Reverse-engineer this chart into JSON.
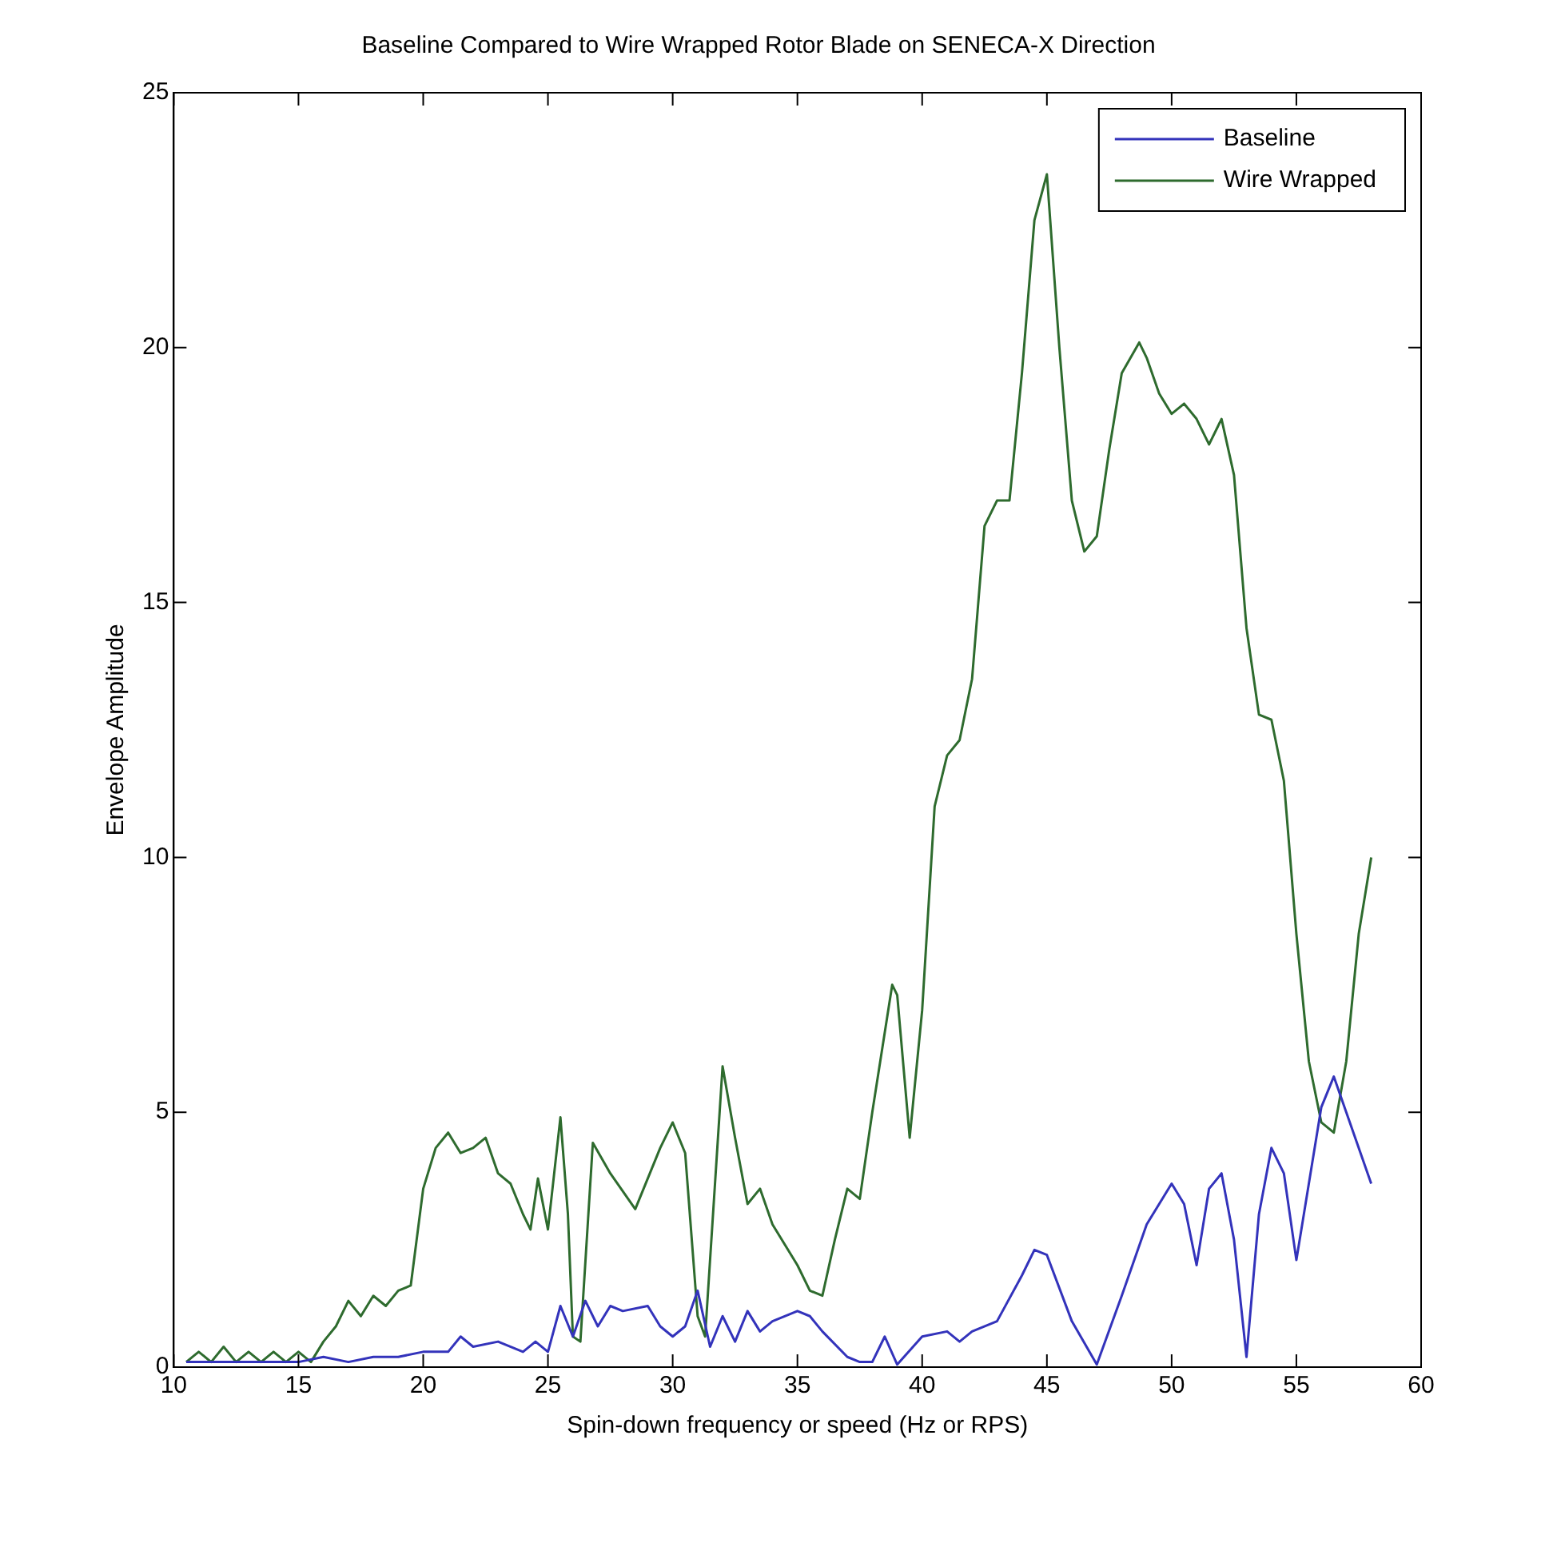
{
  "chart_data": {
    "type": "line",
    "title": "Baseline Compared to Wire Wrapped Rotor Blade on SENECA-X Direction",
    "xlabel": "Spin-down frequency or speed (Hz or RPS)",
    "ylabel": "Envelope Amplitude",
    "xlim": [
      10,
      60
    ],
    "xticks": [
      10,
      15,
      20,
      25,
      30,
      35,
      40,
      45,
      50,
      55,
      60
    ],
    "ylim": [
      0,
      25
    ],
    "yticks": [
      0,
      5,
      10,
      15,
      20,
      25
    ],
    "grid": false,
    "legend": "top right",
    "marker": "none",
    "line_style": "solid",
    "series": [
      {
        "name": "Baseline",
        "color": "#3333bb",
        "x": [
          10.5,
          11,
          13,
          15,
          16,
          17,
          18,
          19,
          20,
          21,
          21.5,
          22,
          23,
          24,
          24.5,
          25,
          25.5,
          26,
          26.5,
          27,
          27.5,
          28,
          29,
          29.5,
          30,
          30.5,
          31,
          31.5,
          32,
          32.5,
          33,
          33.5,
          34,
          35,
          35.5,
          36,
          37,
          37.5,
          38,
          38.5,
          39,
          40,
          41,
          41.5,
          42,
          43,
          44,
          44.5,
          45,
          46,
          47,
          48,
          49,
          50,
          50.5,
          51,
          51.5,
          52,
          52.5,
          53,
          53.5,
          54,
          54.5,
          55,
          56,
          56.5,
          57,
          58
        ],
        "values": [
          0.1,
          0.1,
          0.1,
          0.1,
          0.2,
          0.1,
          0.2,
          0.2,
          0.3,
          0.3,
          0.6,
          0.4,
          0.5,
          0.3,
          0.5,
          0.3,
          1.2,
          0.6,
          1.3,
          0.8,
          1.2,
          1.1,
          1.2,
          0.8,
          0.6,
          0.8,
          1.5,
          0.4,
          1.0,
          0.5,
          1.1,
          0.7,
          0.9,
          1.1,
          1.0,
          0.7,
          0.2,
          0.1,
          0.1,
          0.6,
          0.05,
          0.6,
          0.7,
          0.5,
          0.7,
          0.9,
          1.8,
          2.3,
          2.2,
          0.9,
          0.05,
          1.4,
          2.8,
          3.6,
          3.2,
          2.0,
          3.5,
          3.8,
          2.5,
          0.2,
          3.0,
          4.3,
          3.8,
          2.1,
          5.1,
          5.7,
          5.0,
          3.6
        ]
      },
      {
        "name": "Wire Wrapped",
        "color": "#2e6b2e",
        "x": [
          10.5,
          11,
          11.5,
          12,
          12.5,
          13,
          13.5,
          14,
          14.5,
          15,
          15.5,
          16,
          16.5,
          17,
          17.5,
          18,
          18.5,
          19,
          19.5,
          20,
          20.5,
          21,
          21.5,
          22,
          22.5,
          23,
          23.5,
          24,
          24.3,
          24.6,
          25,
          25.5,
          25.8,
          26,
          26.3,
          26.8,
          27.5,
          28.5,
          29.5,
          30,
          30.5,
          31,
          31.3,
          32,
          32.5,
          33,
          33.5,
          34,
          35,
          35.5,
          36,
          36.5,
          37,
          37.5,
          38,
          38.8,
          39,
          39.5,
          40,
          40.5,
          41,
          41.5,
          42,
          42.5,
          43,
          43.5,
          44,
          44.5,
          45,
          45.5,
          46,
          46.5,
          47,
          47.5,
          48,
          48.7,
          49,
          49.5,
          50,
          50.5,
          51,
          51.5,
          52,
          52.5,
          53,
          53.5,
          54,
          54.5,
          55,
          55.5,
          56,
          56.5,
          57,
          57.5,
          58
        ],
        "values": [
          0.1,
          0.3,
          0.1,
          0.4,
          0.1,
          0.3,
          0.1,
          0.3,
          0.1,
          0.3,
          0.1,
          0.5,
          0.8,
          1.3,
          1.0,
          1.4,
          1.2,
          1.5,
          1.6,
          3.5,
          4.3,
          4.6,
          4.2,
          4.3,
          4.5,
          3.8,
          3.6,
          3.0,
          2.7,
          3.7,
          2.7,
          4.9,
          3.0,
          0.6,
          0.5,
          4.4,
          3.8,
          3.1,
          4.3,
          4.8,
          4.2,
          1.0,
          0.6,
          5.9,
          4.5,
          3.2,
          3.5,
          2.8,
          2.0,
          1.5,
          1.4,
          2.5,
          3.5,
          3.3,
          5.0,
          7.5,
          7.3,
          4.5,
          7.0,
          11.0,
          12.0,
          12.3,
          13.5,
          16.5,
          17.0,
          17.0,
          19.5,
          22.5,
          23.4,
          20.0,
          17.0,
          16.0,
          16.3,
          18.0,
          19.5,
          20.1,
          19.8,
          19.1,
          18.7,
          18.9,
          18.6,
          18.1,
          18.6,
          17.5,
          14.5,
          12.8,
          12.7,
          11.5,
          8.5,
          6.0,
          4.8,
          4.6,
          6.0,
          8.5,
          10.0
        ]
      }
    ]
  }
}
